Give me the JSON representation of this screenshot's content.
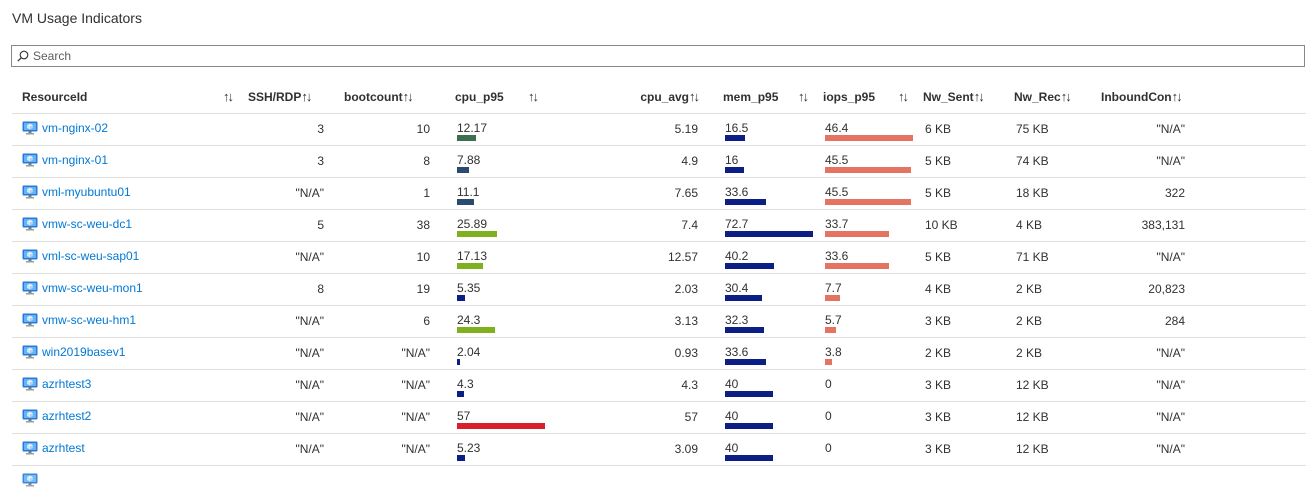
{
  "title": "VM Usage Indicators",
  "search": {
    "placeholder": "Search"
  },
  "colors": {
    "link": "#0078d4",
    "mem": "#0c1f85",
    "iops": "#e47461",
    "border": "#e1dfdd"
  },
  "columns": [
    {
      "key": "ResourceId",
      "label": "ResourceId",
      "sort": "↑↓"
    },
    {
      "key": "ssh",
      "label": "SSH/RDP",
      "sort": "↑↓"
    },
    {
      "key": "boot",
      "label": "bootcount",
      "sort": "↑↓"
    },
    {
      "key": "cpu_p95",
      "label": "cpu_p95",
      "sort": "↑↓"
    },
    {
      "key": "cpu_avg",
      "label": "cpu_avg",
      "sort": "↑↓"
    },
    {
      "key": "mem_p95",
      "label": "mem_p95",
      "sort": "↑↓"
    },
    {
      "key": "iops_p95",
      "label": "iops_p95",
      "sort": "↑↓"
    },
    {
      "key": "Nw_Sent",
      "label": "Nw_Sent",
      "sort": "↑↓"
    },
    {
      "key": "Nw_Rec",
      "label": "Nw_Rec",
      "sort": "↑↓"
    },
    {
      "key": "InboundCon",
      "label": "InboundCon",
      "sort": "↑↓"
    }
  ],
  "rows": [
    {
      "name": "vm-nginx-02",
      "ssh": "3",
      "boot": "10",
      "cpu_p95": "12.17",
      "cpu_color": "#3d6e4f",
      "cpu_avg": "5.19",
      "mem_p95": "16.5",
      "iops_p95": "46.4",
      "Nw_Sent": "6 KB",
      "Nw_Rec": "75 KB",
      "InboundCon": "\"N/A\""
    },
    {
      "name": "vm-nginx-01",
      "ssh": "3",
      "boot": "8",
      "cpu_p95": "7.88",
      "cpu_color": "#2c4a6e",
      "cpu_avg": "4.9",
      "mem_p95": "16",
      "iops_p95": "45.5",
      "Nw_Sent": "5 KB",
      "Nw_Rec": "74 KB",
      "InboundCon": "\"N/A\""
    },
    {
      "name": "vml-myubuntu01",
      "ssh": "\"N/A\"",
      "boot": "1",
      "cpu_p95": "11.1",
      "cpu_color": "#2c4a6e",
      "cpu_avg": "7.65",
      "mem_p95": "33.6",
      "iops_p95": "45.5",
      "Nw_Sent": "5 KB",
      "Nw_Rec": "18 KB",
      "InboundCon": "322"
    },
    {
      "name": "vmw-sc-weu-dc1",
      "ssh": "5",
      "boot": "38",
      "cpu_p95": "25.89",
      "cpu_color": "#7fb11e",
      "cpu_avg": "7.4",
      "mem_p95": "72.7",
      "iops_p95": "33.7",
      "Nw_Sent": "10 KB",
      "Nw_Rec": "4 KB",
      "InboundCon": "383,131"
    },
    {
      "name": "vml-sc-weu-sap01",
      "ssh": "\"N/A\"",
      "boot": "10",
      "cpu_p95": "17.13",
      "cpu_color": "#7fb11e",
      "cpu_avg": "12.57",
      "mem_p95": "40.2",
      "iops_p95": "33.6",
      "Nw_Sent": "5 KB",
      "Nw_Rec": "71 KB",
      "InboundCon": "\"N/A\""
    },
    {
      "name": "vmw-sc-weu-mon1",
      "ssh": "8",
      "boot": "19",
      "cpu_p95": "5.35",
      "cpu_color": "#0c1f85",
      "cpu_avg": "2.03",
      "mem_p95": "30.4",
      "iops_p95": "7.7",
      "Nw_Sent": "4 KB",
      "Nw_Rec": "2 KB",
      "InboundCon": "20,823"
    },
    {
      "name": "vmw-sc-weu-hm1",
      "ssh": "\"N/A\"",
      "boot": "6",
      "cpu_p95": "24.3",
      "cpu_color": "#7fb11e",
      "cpu_avg": "3.13",
      "mem_p95": "32.3",
      "iops_p95": "5.7",
      "Nw_Sent": "3 KB",
      "Nw_Rec": "2 KB",
      "InboundCon": "284"
    },
    {
      "name": "win2019basev1",
      "ssh": "\"N/A\"",
      "boot": "\"N/A\"",
      "cpu_p95": "2.04",
      "cpu_color": "#0c1f85",
      "cpu_avg": "0.93",
      "mem_p95": "33.6",
      "iops_p95": "3.8",
      "Nw_Sent": "2 KB",
      "Nw_Rec": "2 KB",
      "InboundCon": "\"N/A\""
    },
    {
      "name": "azrhtest3",
      "ssh": "\"N/A\"",
      "boot": "\"N/A\"",
      "cpu_p95": "4.3",
      "cpu_color": "#0c1f85",
      "cpu_avg": "4.3",
      "mem_p95": "40",
      "iops_p95": "0",
      "Nw_Sent": "3 KB",
      "Nw_Rec": "12 KB",
      "InboundCon": "\"N/A\""
    },
    {
      "name": "azrhtest2",
      "ssh": "\"N/A\"",
      "boot": "\"N/A\"",
      "cpu_p95": "57",
      "cpu_color": "#d91f2b",
      "cpu_avg": "57",
      "mem_p95": "40",
      "iops_p95": "0",
      "Nw_Sent": "3 KB",
      "Nw_Rec": "12 KB",
      "InboundCon": "\"N/A\""
    },
    {
      "name": "azrhtest",
      "ssh": "\"N/A\"",
      "boot": "\"N/A\"",
      "cpu_p95": "5.23",
      "cpu_color": "#0c1f85",
      "cpu_avg": "3.09",
      "mem_p95": "40",
      "iops_p95": "0",
      "Nw_Sent": "3 KB",
      "Nw_Rec": "12 KB",
      "InboundCon": "\"N/A\""
    }
  ]
}
